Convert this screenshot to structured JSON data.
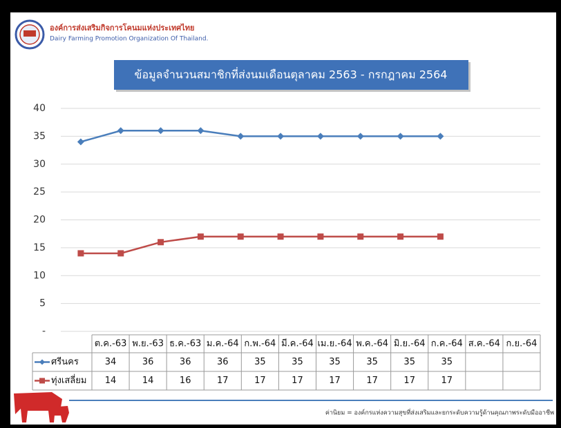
{
  "header": {
    "org_thai": "องค์การส่งเสริมกิจการโคนมแห่งประเทศไทย",
    "org_english": "Dairy Farming Promotion Organization Of Thailand."
  },
  "footer": {
    "motto": "ค่านิยม = องค์กรแห่งความสุขที่ส่งเสริมและยกระดับความรู้ด้านคุณภาพระดับมืออาชีพ"
  },
  "chart_data": {
    "type": "line",
    "title": "ข้อมูลจำนวนสมาชิกที่ส่งนมเดือนตุลาคม 2563 - กรกฎาคม 2564",
    "categories": [
      "ต.ค.-63",
      "พ.ย.-63",
      "ธ.ค.-63",
      "ม.ค.-64",
      "ก.พ.-64",
      "มี.ค.-64",
      "เม.ย.-64",
      "พ.ค.-64",
      "มิ.ย.-64",
      "ก.ค.-64",
      "ส.ค.-64",
      "ก.ย.-64"
    ],
    "series": [
      {
        "name": "ศรีนคร",
        "color": "#4a7ebb",
        "marker": "diamond",
        "values": [
          34,
          36,
          36,
          36,
          35,
          35,
          35,
          35,
          35,
          35,
          null,
          null
        ]
      },
      {
        "name": "ทุ่งเสลี่ยม",
        "color": "#be4b48",
        "marker": "square",
        "values": [
          14,
          14,
          16,
          17,
          17,
          17,
          17,
          17,
          17,
          17,
          null,
          null
        ]
      }
    ],
    "ylim": [
      0,
      40
    ],
    "yticks": [
      {
        "value": 0,
        "label": "-"
      },
      5,
      10,
      15,
      20,
      25,
      30,
      35,
      40
    ],
    "grid": true,
    "data_table": true
  }
}
